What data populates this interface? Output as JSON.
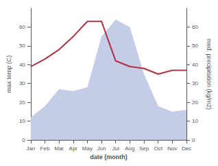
{
  "chart_data": {
    "type": "line",
    "xlabel": "date (month)",
    "ylabel": "max temp (C)",
    "y2label": "med. precipitation (kg/m2)",
    "categories": [
      "Jan",
      "Feb",
      "Mar",
      "Apr",
      "May",
      "Jun",
      "Jul",
      "Aug",
      "Sep",
      "Oct",
      "Nov",
      "Dec"
    ],
    "series": [
      {
        "type": "area",
        "color": "#c5cce8",
        "axis": "y2",
        "values": [
          12,
          18,
          27,
          26,
          28,
          55,
          64,
          60,
          35,
          18,
          15,
          16
        ]
      },
      {
        "type": "line",
        "color": "#b03040",
        "values": [
          39,
          43,
          48,
          55,
          63,
          63,
          42,
          39,
          38,
          35,
          37,
          37
        ]
      }
    ],
    "ylim": [
      0,
      70
    ],
    "yticks": [
      0,
      10,
      20,
      30,
      40,
      50,
      60
    ],
    "y2lim": [
      0,
      70
    ],
    "y2ticks": [
      0,
      10,
      20,
      30,
      40,
      50,
      60
    ],
    "grid": false
  }
}
